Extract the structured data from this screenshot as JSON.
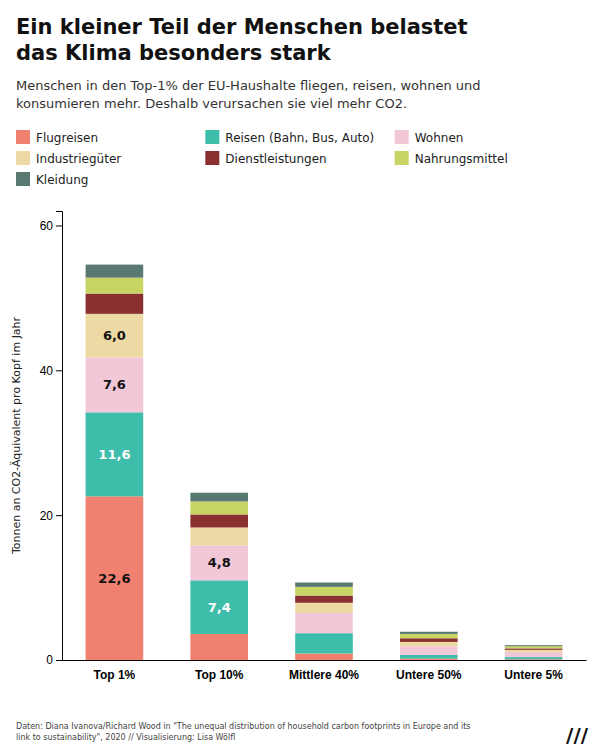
{
  "chart_data": {
    "type": "bar",
    "stacked": true,
    "title": "Ein kleiner Teil der Menschen belastet\ndas Klima besonders stark",
    "subtitle": "Menschen in den Top-1% der EU-Haushalte fliegen, reisen, wohnen und\nkonsumieren mehr. Deshalb verursachen sie viel mehr CO2.",
    "ylabel": "Tonnen an CO2-Äquivalent pro Kopf im Jahr",
    "categories": [
      "Top 1%",
      "Top 10%",
      "Mittlere 40%",
      "Untere 50%",
      "Untere 5%"
    ],
    "series": [
      {
        "name": "Flugreisen",
        "color": "#F08070",
        "values": [
          22.6,
          3.6,
          0.9,
          0.2,
          0.1
        ],
        "value_labels": [
          "22,6",
          null,
          null,
          null,
          null
        ]
      },
      {
        "name": "Reisen (Bahn, Bus, Auto)",
        "color": "#3DBDAA",
        "values": [
          11.6,
          7.4,
          2.8,
          0.5,
          0.3
        ],
        "value_labels": [
          "11,6",
          "7,4",
          null,
          null,
          null
        ]
      },
      {
        "name": "Wohnen",
        "color": "#F2C8D8",
        "values": [
          7.6,
          4.8,
          2.8,
          1.2,
          0.7
        ],
        "value_labels": [
          "7,6",
          "4,8",
          null,
          null,
          null
        ]
      },
      {
        "name": "Industriegüter",
        "color": "#EDD9A3",
        "values": [
          6.0,
          2.5,
          1.4,
          0.6,
          0.3
        ],
        "value_labels": [
          "6,0",
          null,
          null,
          null,
          null
        ]
      },
      {
        "name": "Dienstleistungen",
        "color": "#8B3030",
        "values": [
          2.8,
          1.8,
          1.0,
          0.5,
          0.2
        ]
      },
      {
        "name": "Nahrungsmittel",
        "color": "#C8D464",
        "values": [
          2.2,
          1.8,
          1.2,
          0.6,
          0.3
        ]
      },
      {
        "name": "Kleidung",
        "color": "#5A7872",
        "values": [
          1.8,
          1.2,
          0.6,
          0.3,
          0.15
        ]
      }
    ],
    "ylim": [
      0,
      62
    ],
    "yticks": [
      0,
      20,
      40,
      60
    ],
    "grid": false,
    "legend": "top",
    "annotations": [
      "Daten: Diana Ivanova/Richard Wood in \"The unequal distribution of household carbon footprints in Europe and its\nlink to sustainability\", 2020 // Visualisierung: Lisa Wölfl",
      "///"
    ]
  }
}
